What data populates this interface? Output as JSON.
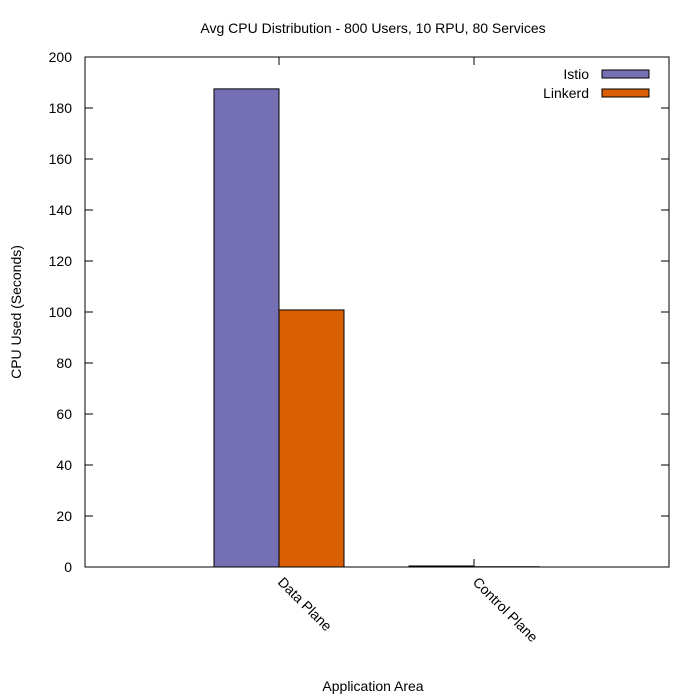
{
  "chart_data": {
    "type": "bar",
    "title": "Avg CPU Distribution - 800 Users, 10 RPU, 80 Services",
    "xlabel": "Application Area",
    "ylabel": "CPU Used (Seconds)",
    "categories": [
      "Data Plane",
      "Control Plane"
    ],
    "series": [
      {
        "name": "Istio",
        "values": [
          187.5,
          0.4
        ],
        "color": "#7570b3"
      },
      {
        "name": "Linkerd",
        "values": [
          100.8,
          0.1
        ],
        "color": "#d95f02"
      }
    ],
    "ylim": [
      0,
      200
    ],
    "yticks": [
      0,
      20,
      40,
      60,
      80,
      100,
      120,
      140,
      160,
      180,
      200
    ],
    "grid": false,
    "legend_position": "top-right"
  }
}
